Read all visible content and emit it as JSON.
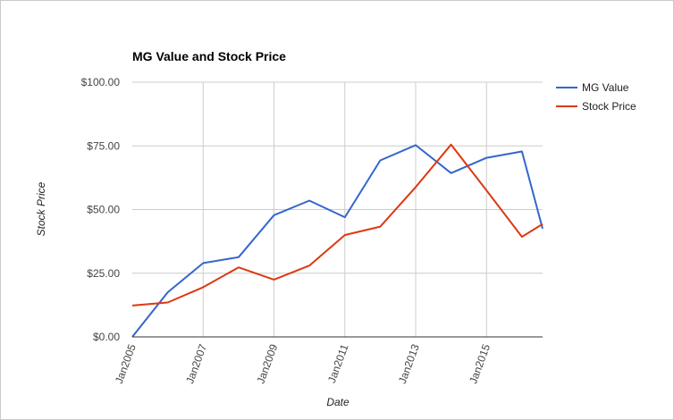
{
  "chart_data": {
    "type": "line",
    "title": "MG Value and Stock Price",
    "xlabel": "Date",
    "ylabel": "Stock Price",
    "x": [
      "2005-01",
      "2006-01",
      "2007-01",
      "2008-01",
      "2009-01",
      "2010-01",
      "2011-01",
      "2012-01",
      "2013-01",
      "2014-01",
      "2015-01",
      "2016-01",
      "2016-08"
    ],
    "xlim": [
      "2005-01",
      "2016-08"
    ],
    "x_ticks": [
      "2005-01",
      "2007-01",
      "2009-01",
      "2011-01",
      "2013-01",
      "2015-01"
    ],
    "x_tick_labels": [
      "Jan2005",
      "Jan2007",
      "Jan2009",
      "Jan2011",
      "Jan2013",
      "Jan2015"
    ],
    "ylim": [
      0,
      100
    ],
    "y_ticks": [
      0,
      25,
      50,
      75,
      100
    ],
    "y_tick_labels": [
      "$0.00",
      "$25.00",
      "$50.00",
      "$75.00",
      "$100.00"
    ],
    "grid": true,
    "legend_position": "right",
    "series": [
      {
        "name": "MG Value",
        "color": "#3366cc",
        "values": [
          0,
          17.5,
          29,
          31.3,
          47.8,
          53.5,
          47,
          69.3,
          75.3,
          64.3,
          70.3,
          72.8,
          42.5
        ]
      },
      {
        "name": "Stock Price",
        "color": "#dc3912",
        "values": [
          12.3,
          13.5,
          19.5,
          27.3,
          22.5,
          28,
          40,
          43.3,
          58.8,
          75.5,
          57.5,
          39.3,
          44.3
        ]
      }
    ]
  }
}
